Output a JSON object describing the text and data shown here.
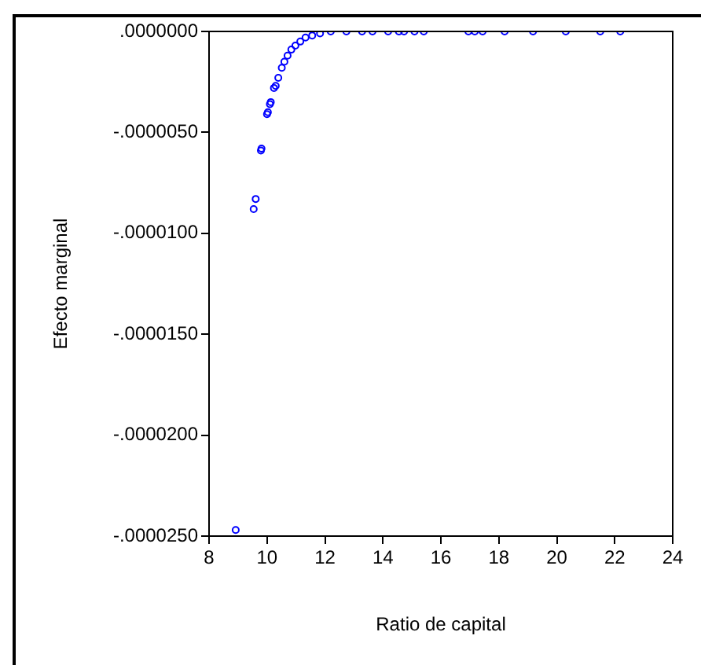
{
  "chart_data": {
    "type": "scatter",
    "xlabel": "Ratio de capital",
    "ylabel": "Efecto marginal",
    "x": [
      8.92,
      9.54,
      9.61,
      9.79,
      9.81,
      10.0,
      10.03,
      10.1,
      10.13,
      10.24,
      10.3,
      10.39,
      10.51,
      10.6,
      10.71,
      10.84,
      10.98,
      11.15,
      11.33,
      11.56,
      11.83,
      12.2,
      12.74,
      13.28,
      13.64,
      14.18,
      14.55,
      14.73,
      15.09,
      15.41,
      16.95,
      17.17,
      17.44,
      18.2,
      19.18,
      20.31,
      21.5,
      22.19
    ],
    "series": [
      {
        "color": "#0000ff",
        "values": [
          -2.47e-05,
          -8.8e-06,
          -8.3e-06,
          -5.9e-06,
          -5.8e-06,
          -4.1e-06,
          -4e-06,
          -3.6e-06,
          -3.5e-06,
          -2.8e-06,
          -2.7e-06,
          -2.3e-06,
          -1.8e-06,
          -1.5e-06,
          -1.2e-06,
          -9e-07,
          -7e-07,
          -5e-07,
          -3e-07,
          -2e-07,
          -1e-07,
          0,
          0,
          0,
          0,
          0,
          0,
          0,
          0,
          0,
          0,
          0,
          0,
          0,
          0,
          0,
          0,
          0
        ]
      }
    ],
    "xlim": [
      8,
      24
    ],
    "xticks": [
      8,
      10,
      12,
      14,
      16,
      18,
      20,
      22,
      24
    ],
    "ylim": [
      -2.5e-05,
      0
    ],
    "yticks": [
      {
        "value": 0,
        "label": ".0000000"
      },
      {
        "value": -5e-06,
        "label": "-.0000050"
      },
      {
        "value": -1e-05,
        "label": "-.0000100"
      },
      {
        "value": -1.5e-05,
        "label": "-.0000150"
      },
      {
        "value": -2e-05,
        "label": "-.0000200"
      },
      {
        "value": -2.5e-05,
        "label": "-.0000250"
      }
    ],
    "marker": "circle",
    "grid": false,
    "legend": false
  }
}
